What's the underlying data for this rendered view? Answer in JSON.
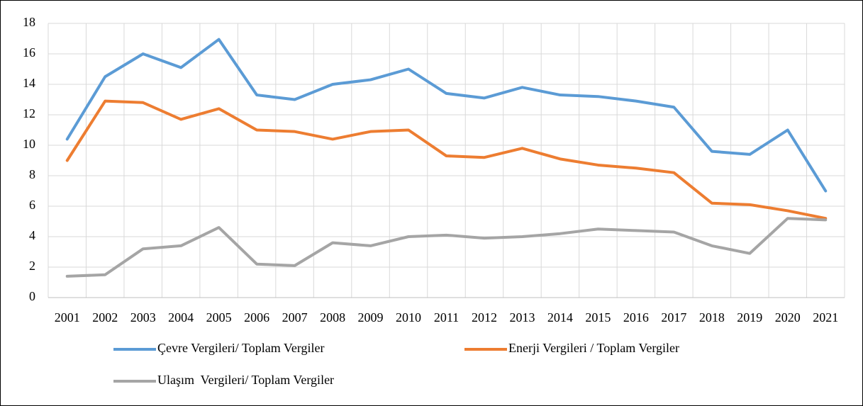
{
  "chart_data": {
    "type": "line",
    "categories": [
      "2001",
      "2002",
      "2003",
      "2004",
      "2005",
      "2006",
      "2007",
      "2008",
      "2009",
      "2010",
      "2011",
      "2012",
      "2013",
      "2014",
      "2015",
      "2016",
      "2017",
      "2018",
      "2019",
      "2020",
      "2021"
    ],
    "series": [
      {
        "name": "Çevre Vergileri/ Toplam Vergiler",
        "color": "#5b9bd5",
        "values": [
          10.4,
          14.5,
          16.0,
          15.1,
          16.95,
          13.3,
          13.0,
          14.0,
          14.3,
          15.0,
          13.4,
          13.1,
          13.8,
          13.3,
          13.2,
          12.9,
          12.5,
          9.6,
          9.4,
          11.0,
          7.0
        ]
      },
      {
        "name": "Enerji Vergileri / Toplam Vergiler",
        "color": "#ed7d31",
        "values": [
          9.0,
          12.9,
          12.8,
          11.7,
          12.4,
          11.0,
          10.9,
          10.4,
          10.9,
          11.0,
          9.3,
          9.2,
          9.8,
          9.1,
          8.7,
          8.5,
          8.2,
          6.2,
          6.1,
          5.7,
          5.2
        ]
      },
      {
        "name": "Ulaşım  Vergileri/ Toplam Vergiler",
        "color": "#a5a5a5",
        "values": [
          1.4,
          1.5,
          3.2,
          3.4,
          4.6,
          2.2,
          2.1,
          3.6,
          3.4,
          4.0,
          4.1,
          3.9,
          4.0,
          4.2,
          4.5,
          4.4,
          4.3,
          3.4,
          2.9,
          5.2,
          5.1
        ]
      }
    ],
    "ylim": [
      0,
      18
    ],
    "yticks": [
      0,
      2,
      4,
      6,
      8,
      10,
      12,
      14,
      16,
      18
    ],
    "grid": true,
    "legend": "bottom"
  }
}
